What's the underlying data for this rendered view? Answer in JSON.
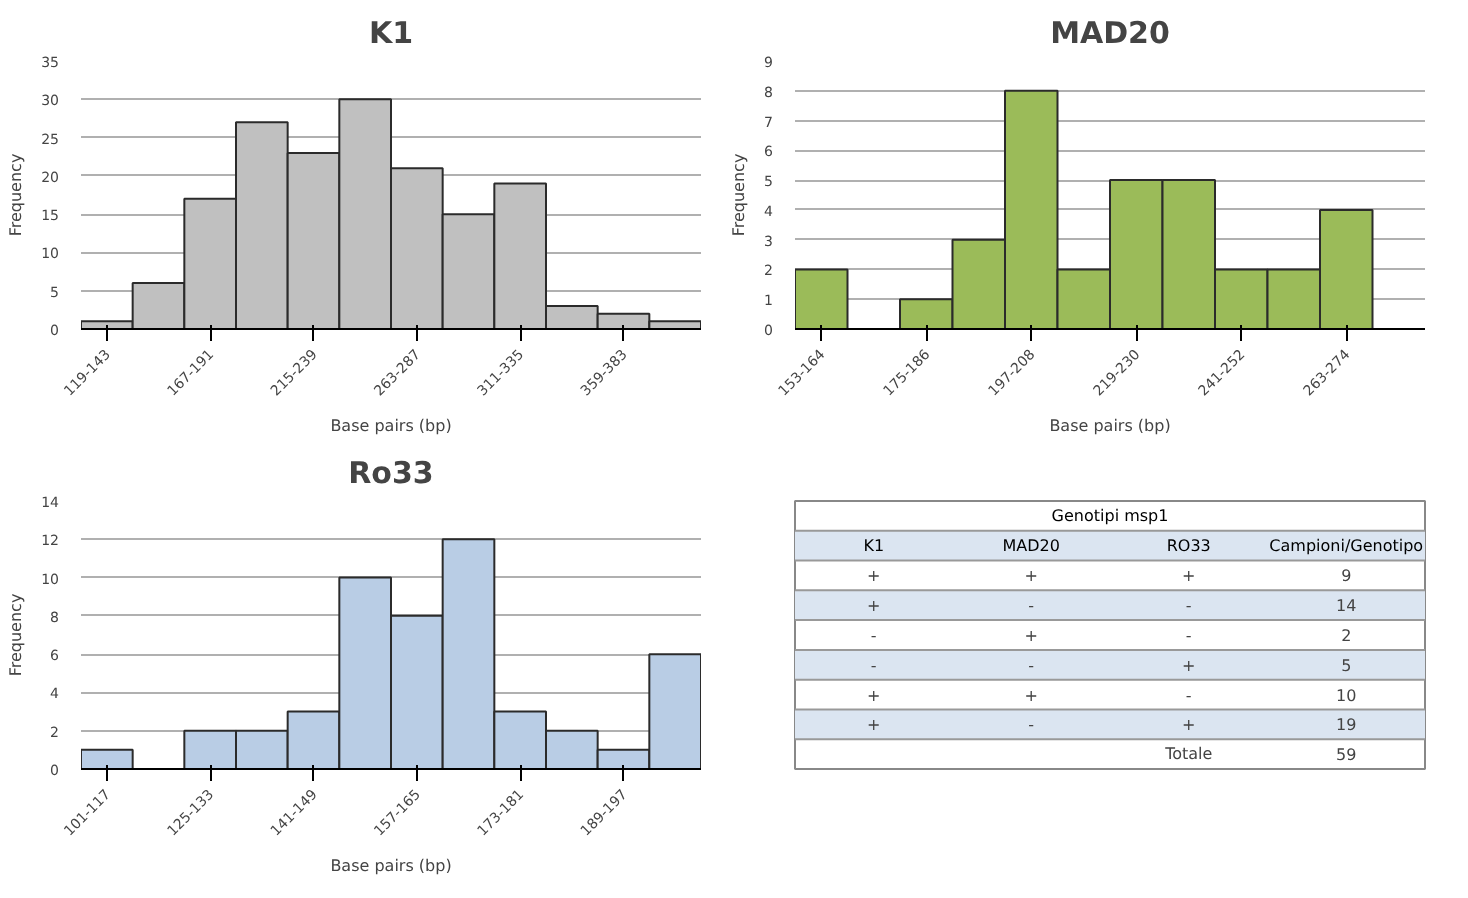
{
  "chart_data": [
    {
      "type": "bar",
      "title": "K1",
      "xlabel": "Base pairs (bp)",
      "ylabel": "Frequency",
      "categories": [
        "119-143",
        null,
        "167-191",
        null,
        "215-239",
        null,
        "263-287",
        null,
        "311-335",
        null,
        "359-383",
        null
      ],
      "series": [
        {
          "color": "#c0c0c0",
          "values": [
            1,
            6,
            17,
            27,
            23,
            30,
            21,
            15,
            19,
            3,
            2,
            1
          ]
        }
      ],
      "ylim": [
        0,
        35
      ],
      "yticks": [
        0,
        5,
        10,
        15,
        20,
        25,
        30,
        35
      ],
      "grid": "y"
    },
    {
      "type": "bar",
      "title": "MAD20",
      "xlabel": "Base pairs (bp)",
      "ylabel": "Frequency",
      "categories": [
        "153-164",
        null,
        "175-186",
        null,
        "197-208",
        null,
        "219-230",
        null,
        "241-252",
        null,
        "263-274",
        null
      ],
      "series": [
        {
          "color": "#9bbb59",
          "values": [
            2,
            null,
            1,
            3,
            8,
            2,
            5,
            5,
            2,
            2,
            4,
            null
          ]
        }
      ],
      "ylim": [
        0,
        9
      ],
      "yticks": [
        0,
        1,
        2,
        3,
        4,
        5,
        6,
        7,
        8,
        9
      ],
      "grid": "y"
    },
    {
      "type": "bar",
      "title": "Ro33",
      "xlabel": "Base pairs (bp)",
      "ylabel": "Frequency",
      "categories": [
        "101-117",
        null,
        "125-133",
        null,
        "141-149",
        null,
        "157-165",
        null,
        "173-181",
        null,
        "189-197",
        null
      ],
      "series": [
        {
          "color": "#b9cde5",
          "values": [
            1,
            null,
            2,
            2,
            3,
            10,
            8,
            12,
            3,
            2,
            1,
            6
          ]
        }
      ],
      "ylim": [
        0,
        14
      ],
      "yticks": [
        0,
        2,
        4,
        6,
        8,
        10,
        12,
        14
      ],
      "grid": "y"
    },
    {
      "type": "other",
      "title": "Genotipi msp1",
      "categories": [
        "K1",
        "MAD20",
        "RO33",
        "Campioni/Genotipo"
      ],
      "cell_labels": [
        [
          "+",
          "+",
          "+",
          "9"
        ],
        [
          "+",
          "-",
          "-",
          "14"
        ],
        [
          "-",
          "+",
          "-",
          "2"
        ],
        [
          "-",
          "-",
          "+",
          "5"
        ],
        [
          "+",
          "+",
          "-",
          "10"
        ],
        [
          "+",
          "-",
          "+",
          "19"
        ],
        [
          null,
          null,
          "Totale",
          "59"
        ]
      ]
    }
  ]
}
